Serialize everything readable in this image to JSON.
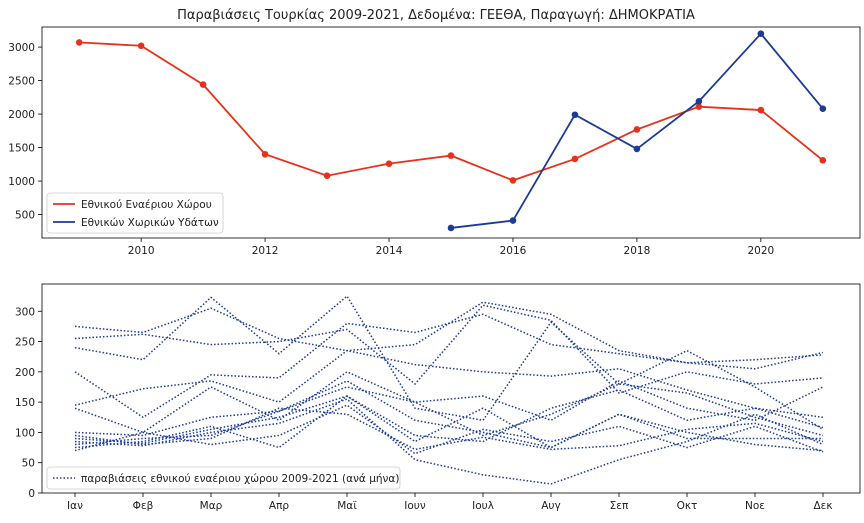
{
  "chart_data": [
    {
      "type": "line",
      "title": "Παραβιάσεις Τουρκίας 2009-2021, Δεδομένα: ΓΕΕΘΑ, Παραγωγή: ΔΗΜΟΚΡΑΤΙΑ",
      "xlabel": "",
      "ylabel": "",
      "xlim": [
        2008.4,
        2021.6
      ],
      "ylim": [
        150,
        3300
      ],
      "x_ticks": [
        2010,
        2012,
        2014,
        2016,
        2018,
        2020
      ],
      "y_ticks": [
        500,
        1000,
        1500,
        2000,
        2500,
        3000
      ],
      "grid": false,
      "legend_position": "bottom-left",
      "series": [
        {
          "name": "Εθνικού Εναέριου Χώρου",
          "color": "#e8311a",
          "x": [
            2009,
            2010,
            2011,
            2012,
            2013,
            2014,
            2015,
            2016,
            2017,
            2018,
            2019,
            2020,
            2021
          ],
          "y": [
            3070,
            3020,
            2440,
            1400,
            1080,
            1260,
            1380,
            1010,
            1330,
            1770,
            2110,
            2060,
            1310
          ]
        },
        {
          "name": "Εθνικών Χωρικών Υδάτων",
          "color": "#1c3a96",
          "x": [
            2015,
            2016,
            2017,
            2018,
            2019,
            2020,
            2021
          ],
          "y": [
            300,
            410,
            1990,
            1480,
            2190,
            3200,
            2080
          ]
        }
      ]
    },
    {
      "type": "line",
      "xlabel": "",
      "ylabel": "",
      "categories": [
        "Ιαν",
        "Φεβ",
        "Μαρ",
        "Απρ",
        "Μαϊ",
        "Ιουν",
        "Ιουλ",
        "Αυγ",
        "Σεπ",
        "Οκτ",
        "Νοε",
        "Δεκ"
      ],
      "ylim": [
        0,
        345
      ],
      "y_ticks": [
        0,
        50,
        100,
        150,
        200,
        250,
        300
      ],
      "grid": false,
      "legend_position": "bottom-left",
      "legend_label": "παραβιάσεις εθνικού εναέριου χώρου 2009-2021 (ανά μήνα)",
      "line_color": "#1c3a96",
      "series": [
        {
          "values": [
            275,
            265,
            305,
            255,
            235,
            245,
            315,
            295,
            235,
            215,
            220,
            228
          ]
        },
        {
          "values": [
            240,
            220,
            323,
            230,
            325,
            140,
            120,
            282,
            180,
            235,
            175,
            105
          ]
        },
        {
          "values": [
            200,
            125,
            195,
            190,
            280,
            265,
            295,
            245,
            230,
            215,
            205,
            232
          ]
        },
        {
          "values": [
            145,
            172,
            185,
            150,
            235,
            212,
            200,
            193,
            205,
            170,
            140,
            108
          ]
        },
        {
          "values": [
            255,
            262,
            245,
            250,
            270,
            180,
            310,
            285,
            165,
            200,
            180,
            190
          ]
        },
        {
          "values": [
            140,
            100,
            175,
            120,
            200,
            150,
            160,
            120,
            185,
            140,
            120,
            175
          ]
        },
        {
          "values": [
            100,
            95,
            125,
            135,
            175,
            150,
            95,
            130,
            180,
            165,
            125,
            95
          ]
        },
        {
          "values": [
            90,
            82,
            105,
            125,
            160,
            85,
            140,
            75,
            130,
            100,
            80,
            70
          ]
        },
        {
          "values": [
            75,
            85,
            110,
            75,
            160,
            95,
            85,
            140,
            170,
            120,
            140,
            125
          ]
        },
        {
          "values": [
            70,
            100,
            80,
            95,
            145,
            65,
            105,
            85,
            110,
            75,
            110,
            68
          ]
        },
        {
          "values": [
            85,
            78,
            100,
            115,
            155,
            55,
            30,
            15,
            55,
            85,
            130,
            80
          ]
        },
        {
          "values": [
            80,
            90,
            95,
            135,
            185,
            120,
            100,
            75,
            130,
            90,
            90,
            90
          ]
        },
        {
          "values": [
            95,
            80,
            90,
            140,
            130,
            72,
            92,
            72,
            78,
            105,
            115,
            85
          ]
        }
      ]
    }
  ]
}
